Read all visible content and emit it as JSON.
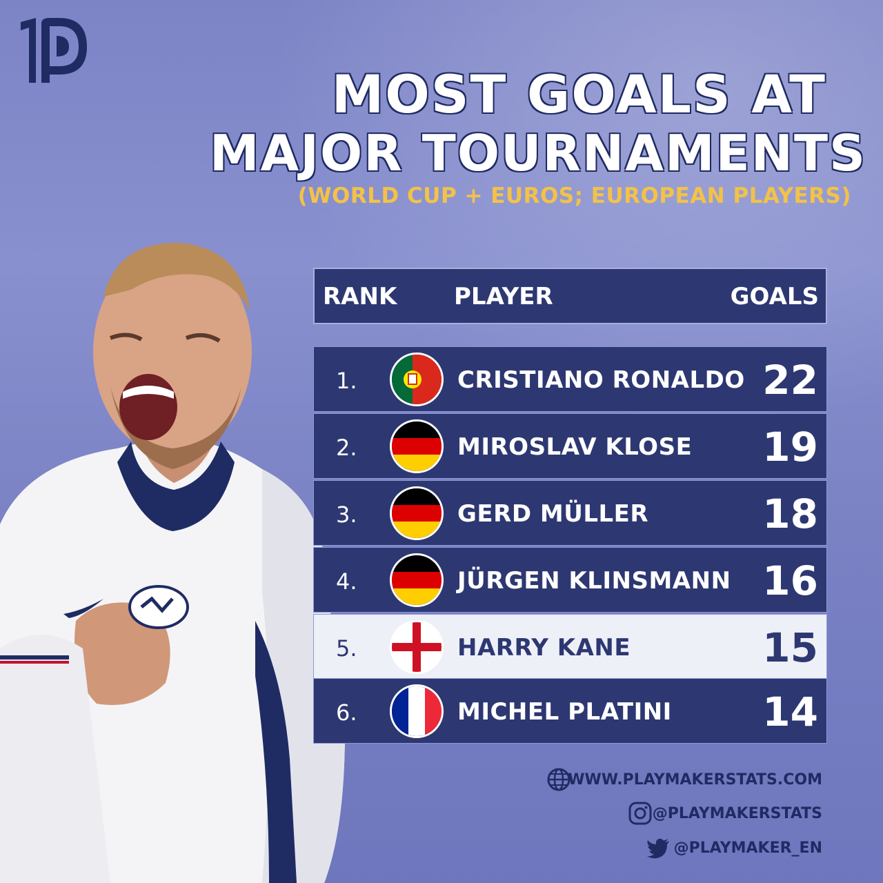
{
  "header": {
    "title_line1": "MOST GOALS AT",
    "title_line2": "MAJOR TOURNAMENTS",
    "subtitle": "(WORLD CUP + EUROS; EUROPEAN PLAYERS)"
  },
  "table": {
    "columns": {
      "rank": "RANK",
      "player": "PLAYER",
      "goals": "GOALS"
    },
    "rows": [
      {
        "rank": "1.",
        "player": "CRISTIANO RONALDO",
        "goals": "22",
        "flag": "portugal"
      },
      {
        "rank": "2.",
        "player": "MIROSLAV KLOSE",
        "goals": "19",
        "flag": "germany"
      },
      {
        "rank": "3.",
        "player": "GERD MÜLLER",
        "goals": "18",
        "flag": "germany"
      },
      {
        "rank": "4.",
        "player": "JÜRGEN KLINSMANN",
        "goals": "16",
        "flag": "germany"
      },
      {
        "rank": "5.",
        "player": "HARRY KANE",
        "goals": "15",
        "flag": "england",
        "highlighted": true
      },
      {
        "rank": "6.",
        "player": "MICHEL PLATINI",
        "goals": "14",
        "flag": "france"
      }
    ]
  },
  "footer": {
    "website": "WWW.PLAYMAKERSTATS.COM",
    "instagram": "@PLAYMAKERSTATS",
    "twitter": "@PLAYMAKER_EN"
  },
  "icons": [
    "playmaker-logo-icon",
    "globe-icon",
    "instagram-icon",
    "twitter-icon"
  ],
  "colors": {
    "navy": "#2d3872",
    "accent_yellow": "#f3c247",
    "highlight_row": "#eef0f8"
  }
}
